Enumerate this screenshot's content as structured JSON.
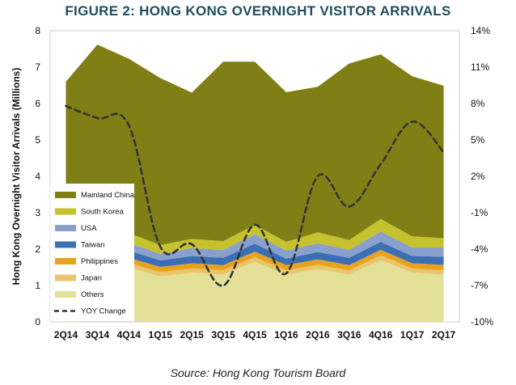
{
  "figure": {
    "title": "FIGURE 2: HONG KONG OVERNIGHT VISITOR ARRIVALS",
    "source": "Source: Hong Kong Tourism Board"
  },
  "chart_data": {
    "type": "area",
    "stacked": true,
    "title": "FIGURE 2: HONG KONG OVERNIGHT VISITOR ARRIVALS",
    "ylabel": "Hong Kong Overnight Visitor Arrivals (Millions)",
    "y2label": "",
    "categories": [
      "2Q14",
      "3Q14",
      "4Q14",
      "1Q15",
      "2Q15",
      "3Q15",
      "4Q15",
      "1Q16",
      "2Q16",
      "3Q16",
      "4Q16",
      "1Q17",
      "2Q17"
    ],
    "ylim": [
      0,
      8
    ],
    "yticks": [
      "0",
      "1",
      "2",
      "3",
      "4",
      "5",
      "6",
      "7",
      "8"
    ],
    "y2lim": [
      -10,
      14
    ],
    "y2ticks": [
      "-10%",
      "-7%",
      "-4%",
      "-1%",
      "2%",
      "5%",
      "8%",
      "11%",
      "14%"
    ],
    "grid": false,
    "legend_position": "left",
    "series": [
      {
        "name": "Others",
        "color": "#e3e097",
        "values": [
          1.45,
          1.55,
          1.5,
          1.25,
          1.35,
          1.3,
          1.65,
          1.3,
          1.45,
          1.3,
          1.7,
          1.35,
          1.3
        ]
      },
      {
        "name": "Japan",
        "color": "#e9c56b",
        "values": [
          0.12,
          0.13,
          0.12,
          0.12,
          0.12,
          0.12,
          0.13,
          0.12,
          0.12,
          0.12,
          0.13,
          0.12,
          0.12
        ]
      },
      {
        "name": "Philippines",
        "color": "#e8a21e",
        "values": [
          0.15,
          0.15,
          0.14,
          0.14,
          0.14,
          0.14,
          0.15,
          0.14,
          0.15,
          0.14,
          0.15,
          0.14,
          0.15
        ]
      },
      {
        "name": "Taiwan",
        "color": "#3a6fb6",
        "values": [
          0.2,
          0.22,
          0.2,
          0.18,
          0.2,
          0.2,
          0.22,
          0.18,
          0.2,
          0.2,
          0.22,
          0.2,
          0.22
        ]
      },
      {
        "name": "USA",
        "color": "#8aa0cc",
        "values": [
          0.2,
          0.24,
          0.22,
          0.18,
          0.22,
          0.22,
          0.26,
          0.22,
          0.24,
          0.22,
          0.28,
          0.24,
          0.26
        ]
      },
      {
        "name": "South Korea",
        "color": "#c6c22d",
        "values": [
          0.28,
          0.28,
          0.26,
          0.24,
          0.25,
          0.24,
          0.25,
          0.24,
          0.3,
          0.27,
          0.35,
          0.3,
          0.25
        ]
      },
      {
        "name": "Mainland China",
        "color": "#7f7f16",
        "values": [
          4.2,
          5.05,
          4.79,
          4.59,
          4.02,
          4.93,
          4.49,
          4.11,
          4.0,
          4.85,
          4.52,
          4.4,
          4.19
        ]
      }
    ],
    "line_series": {
      "name": "YOY Change",
      "color": "#333333",
      "axis": "secondary",
      "values": [
        7.8,
        6.8,
        6.2,
        -3.8,
        -3.6,
        -7.0,
        -2.0,
        -6.0,
        2.0,
        -0.5,
        3.0,
        6.5,
        4.0
      ]
    }
  }
}
